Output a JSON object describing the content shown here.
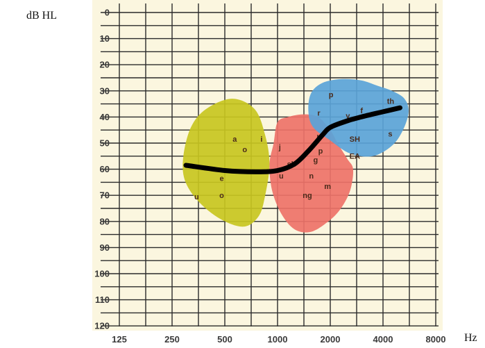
{
  "chart_data": {
    "type": "line",
    "x_unit": "Hz",
    "y_unit": "dB HL",
    "x_scale": "log2",
    "x_ticks": [
      125,
      250,
      500,
      1000,
      2000,
      4000,
      8000
    ],
    "y_ticks": [
      0,
      10,
      20,
      30,
      40,
      50,
      60,
      70,
      80,
      90,
      100,
      110,
      120
    ],
    "ylim": [
      0,
      120
    ],
    "y_inverted": true,
    "grid": true,
    "colors": {
      "background": "#fbf6df",
      "grid": "#2a2a2a",
      "low_region": "#c8c51f",
      "mid_region": "#ee7268",
      "high_region": "#5aa3d8",
      "curve": "#000000",
      "phoneme_text": "#4a2a1a"
    },
    "series": [
      {
        "x": [
          300,
          500,
          750,
          1000,
          1250,
          1500,
          1800,
          2000,
          2500,
          3000,
          4000,
          5000
        ],
        "y": [
          58.5,
          60.5,
          61,
          60.5,
          58,
          53,
          47,
          44,
          41.5,
          40,
          38,
          36.5
        ]
      }
    ],
    "regions": [
      {
        "name": "low",
        "points": [
          [
            290,
            55
          ],
          [
            320,
            44
          ],
          [
            390,
            37
          ],
          [
            550,
            33
          ],
          [
            740,
            37
          ],
          [
            850,
            47
          ],
          [
            900,
            58
          ],
          [
            850,
            70
          ],
          [
            780,
            78
          ],
          [
            640,
            82
          ],
          [
            470,
            79
          ],
          [
            350,
            72
          ],
          [
            295,
            64
          ]
        ]
      },
      {
        "name": "mid",
        "points": [
          [
            950,
            50
          ],
          [
            1000,
            42
          ],
          [
            1150,
            40
          ],
          [
            1400,
            39
          ],
          [
            1700,
            40
          ],
          [
            2000,
            45
          ],
          [
            2200,
            50
          ],
          [
            2500,
            56
          ],
          [
            2700,
            60
          ],
          [
            2600,
            68
          ],
          [
            2300,
            75
          ],
          [
            1950,
            80
          ],
          [
            1550,
            84
          ],
          [
            1250,
            83
          ],
          [
            1050,
            77
          ],
          [
            930,
            68
          ],
          [
            900,
            58
          ]
        ]
      },
      {
        "name": "high",
        "points": [
          [
            1500,
            38
          ],
          [
            1550,
            31
          ],
          [
            1800,
            27
          ],
          [
            2300,
            25.5
          ],
          [
            3000,
            26
          ],
          [
            3700,
            28
          ],
          [
            4500,
            30
          ],
          [
            5300,
            33
          ],
          [
            5600,
            38
          ],
          [
            5200,
            45
          ],
          [
            4500,
            51
          ],
          [
            3500,
            55
          ],
          [
            2600,
            54
          ],
          [
            2000,
            49
          ],
          [
            1600,
            44
          ]
        ]
      }
    ],
    "phonemes": [
      {
        "text": "a",
        "x": 570,
        "y": 49.5
      },
      {
        "text": "o",
        "x": 650,
        "y": 53.5
      },
      {
        "text": "i",
        "x": 810,
        "y": 49.5
      },
      {
        "text": "e",
        "x": 480,
        "y": 64.5
      },
      {
        "text": "u",
        "x": 345,
        "y": 71.5
      },
      {
        "text": "o",
        "x": 480,
        "y": 71
      },
      {
        "text": "j",
        "x": 1030,
        "y": 52.5
      },
      {
        "text": "u",
        "x": 1050,
        "y": 63.5
      },
      {
        "text": "sh",
        "x": 1200,
        "y": 59
      },
      {
        "text": "k",
        "x": 1720,
        "y": 49
      },
      {
        "text": "p",
        "x": 1760,
        "y": 54
      },
      {
        "text": "g",
        "x": 1650,
        "y": 57.5
      },
      {
        "text": "n",
        "x": 1560,
        "y": 63.5
      },
      {
        "text": "ng",
        "x": 1480,
        "y": 71
      },
      {
        "text": "m",
        "x": 1930,
        "y": 67.5
      },
      {
        "text": "p",
        "x": 2020,
        "y": 32.5
      },
      {
        "text": "r",
        "x": 1720,
        "y": 39.5
      },
      {
        "text": "y",
        "x": 2520,
        "y": 40.5
      },
      {
        "text": "f",
        "x": 3020,
        "y": 38.5
      },
      {
        "text": "th",
        "x": 4420,
        "y": 35
      },
      {
        "text": "s",
        "x": 4400,
        "y": 47.5
      },
      {
        "text": "SH",
        "x": 2760,
        "y": 49.5
      },
      {
        "text": "EA",
        "x": 2760,
        "y": 56
      }
    ]
  },
  "labels": {
    "y_unit": "dB HL",
    "x_unit": "Hz"
  }
}
